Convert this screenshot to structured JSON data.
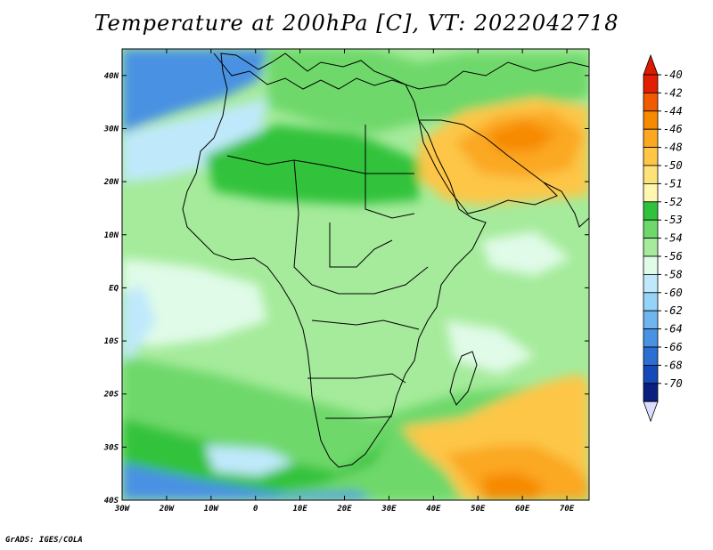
{
  "title": "Temperature at 200hPa [C], VT: 2022042718",
  "credit": "GrADS: IGES/COLA",
  "map": {
    "lon_ticks": [
      "30W",
      "20W",
      "10W",
      "0",
      "10E",
      "20E",
      "30E",
      "40E",
      "50E",
      "60E",
      "70E"
    ],
    "lat_ticks": [
      "40N",
      "30N",
      "20N",
      "10N",
      "EQ",
      "10S",
      "20S",
      "30S",
      "40S"
    ],
    "lon_range": [
      -30,
      75
    ],
    "lat_range": [
      -40,
      45
    ]
  },
  "colorbar": {
    "labels": [
      "-40",
      "-42",
      "-44",
      "-46",
      "-48",
      "-50",
      "-51",
      "-52",
      "-53",
      "-54",
      "-56",
      "-58",
      "-60",
      "-62",
      "-64",
      "-66",
      "-68",
      "-70"
    ],
    "colors": [
      "#e11d03",
      "#f05a00",
      "#f78a00",
      "#fba820",
      "#fdc646",
      "#fde27a",
      "#fff6b0",
      "#31c23b",
      "#6ed86a",
      "#a5eb9b",
      "#e0fbe8",
      "#bfe9fb",
      "#96d3f8",
      "#6fb6f0",
      "#4891e3",
      "#2a6fd1",
      "#1349b8",
      "#0a1f80"
    ],
    "top_color": "#d91b00",
    "bottom_color": "#dcdcfc"
  },
  "fields": {
    "background": "#a5eb9b",
    "ocean_south": "#6ed86a",
    "cold_blue": "#4891e3",
    "pale_blue": "#bfe9fb",
    "warm_east": "#fdc646",
    "hot_east": "#fba820",
    "hot_south": "#f78a00",
    "dark_green": "#31c23b"
  }
}
